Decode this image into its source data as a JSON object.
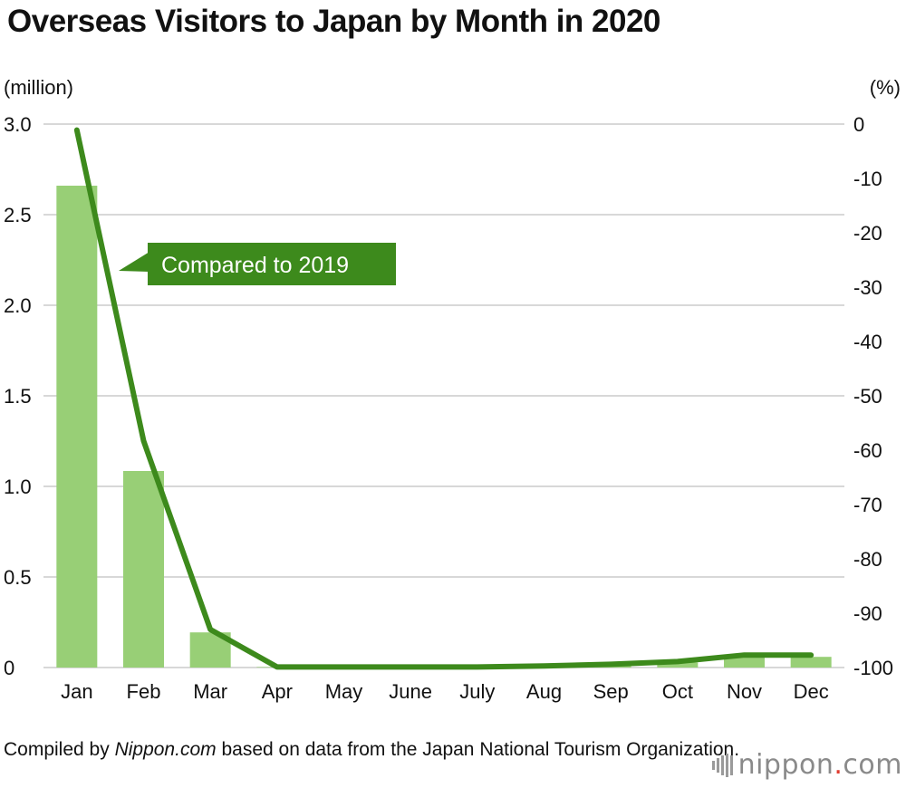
{
  "chart_data": {
    "type": "bar+line",
    "title": "Overseas Visitors to Japan by Month in 2020",
    "categories": [
      "Jan",
      "Feb",
      "Mar",
      "Apr",
      "May",
      "June",
      "July",
      "Aug",
      "Sep",
      "Oct",
      "Nov",
      "Dec"
    ],
    "left_axis": {
      "unit": "(million)",
      "ylim": [
        0,
        3.0
      ],
      "ticks": [
        "3.0",
        "2.5",
        "2.0",
        "1.5",
        "1.0",
        "0.5",
        "0"
      ]
    },
    "right_axis": {
      "unit": "(%)",
      "ylim": [
        -100,
        0
      ],
      "ticks": [
        "0",
        "-10",
        "-20",
        "-30",
        "-40",
        "-50",
        "-60",
        "-70",
        "-80",
        "-90",
        "-100"
      ]
    },
    "series": [
      {
        "kind": "bar",
        "axis": "left",
        "values": [
          2.66,
          1.085,
          0.194,
          0.003,
          0.002,
          0.003,
          0.004,
          0.009,
          0.014,
          0.028,
          0.057,
          0.059
        ]
      },
      {
        "kind": "line",
        "axis": "right",
        "name": "Compared to 2019",
        "values": [
          -1.1,
          -58.3,
          -93.0,
          -99.9,
          -99.9,
          -99.9,
          -99.9,
          -99.7,
          -99.4,
          -98.9,
          -97.7,
          -97.7
        ]
      }
    ],
    "grid": true,
    "annotation": "Compared to 2019",
    "colors": {
      "bar": "#98cf76",
      "line": "#3d8a1c",
      "label_bg": "#3d8a1c",
      "grid": "#cccccc"
    }
  },
  "source": {
    "prefix": "Compiled by ",
    "site": "Nippon.com",
    "rest": " based on data from the Japan National Tourism Organization."
  },
  "logo": {
    "main": "nippon",
    "dot": ".",
    "suffix": "com"
  }
}
